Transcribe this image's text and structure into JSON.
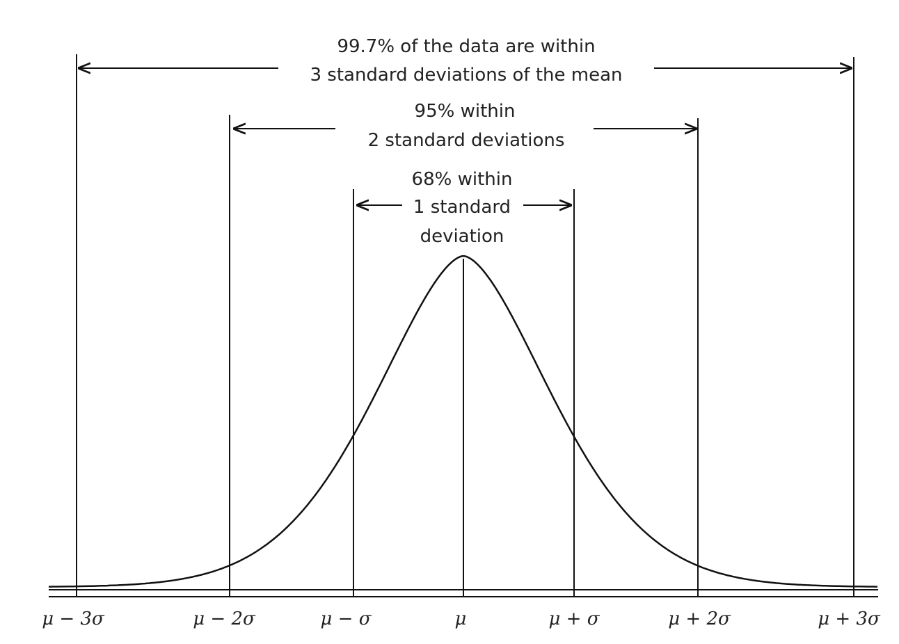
{
  "annotations": {
    "three_sd": [
      "99.7% of the data are within",
      "3 standard deviations of the mean"
    ],
    "two_sd": [
      "95% within",
      "2 standard deviations"
    ],
    "one_sd": [
      "68% within",
      "1 standard",
      "deviation"
    ]
  },
  "axis_labels": [
    "μ − 3σ",
    "μ − 2σ",
    "μ − σ",
    "μ",
    "μ + σ",
    "μ + 2σ",
    "μ + 3σ"
  ],
  "colors": {
    "stroke": "#111111",
    "background": "#ffffff"
  }
}
